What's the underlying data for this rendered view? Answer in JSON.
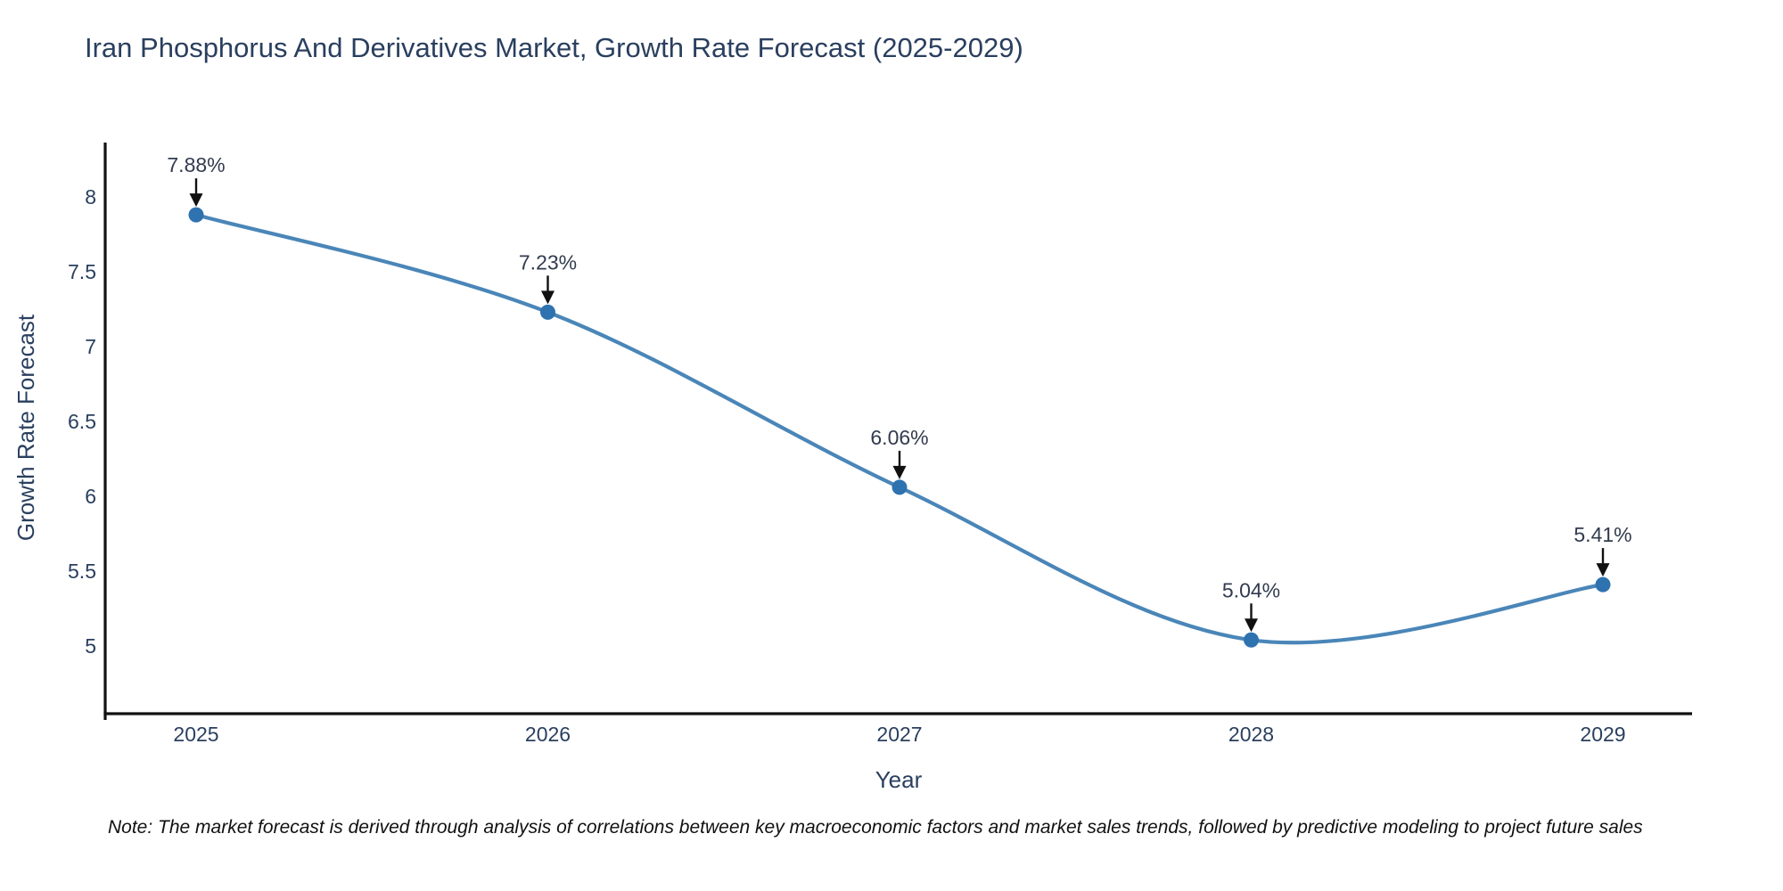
{
  "note": "Note: The market forecast is derived through analysis of correlations between key macroeconomic factors and market sales trends, followed by predictive modeling to project future sales",
  "chart_data": {
    "type": "line",
    "title": "Iran Phosphorus And Derivatives Market, Growth Rate Forecast (2025-2029)",
    "x": [
      2025,
      2026,
      2027,
      2028,
      2029
    ],
    "values": [
      7.88,
      7.23,
      6.06,
      5.04,
      5.41
    ],
    "point_labels": [
      "7.88%",
      "7.23%",
      "6.06%",
      "5.04%",
      "5.41%"
    ],
    "xlabel": "Year",
    "ylabel": "Growth Rate Forecast",
    "yticks": [
      5,
      5.5,
      6,
      6.5,
      7,
      7.5,
      8
    ],
    "ylim": [
      4.54,
      8.37
    ],
    "line_shape": "spline",
    "grid": false,
    "legend": "none",
    "colors": {
      "line": "#4a86b8",
      "marker": "#2e72b0",
      "axis": "#111111",
      "text": "#2a3f5f",
      "annotation_arrow": "#111111",
      "background": "#ffffff"
    }
  }
}
